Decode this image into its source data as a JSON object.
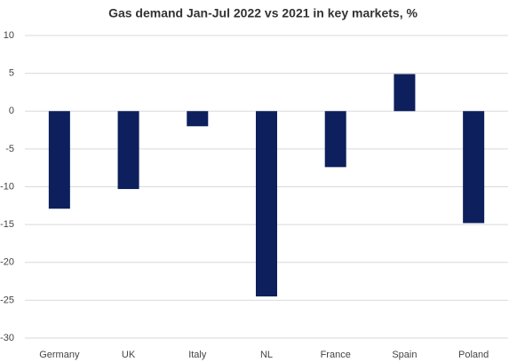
{
  "chart_data": {
    "type": "bar",
    "title": "Gas demand Jan-Jul 2022 vs 2021 in key markets, %",
    "categories": [
      "Germany",
      "UK",
      "Italy",
      "NL",
      "France",
      "Spain",
      "Poland"
    ],
    "values": [
      -12.9,
      -10.3,
      -2,
      -24.5,
      -7.4,
      4.9,
      -14.8
    ],
    "color": "#0d1f5c",
    "ylim": [
      -30,
      10
    ],
    "yticks": [
      -30,
      -25,
      -20,
      -15,
      -10,
      -5,
      0,
      5,
      10
    ],
    "grid": true
  }
}
